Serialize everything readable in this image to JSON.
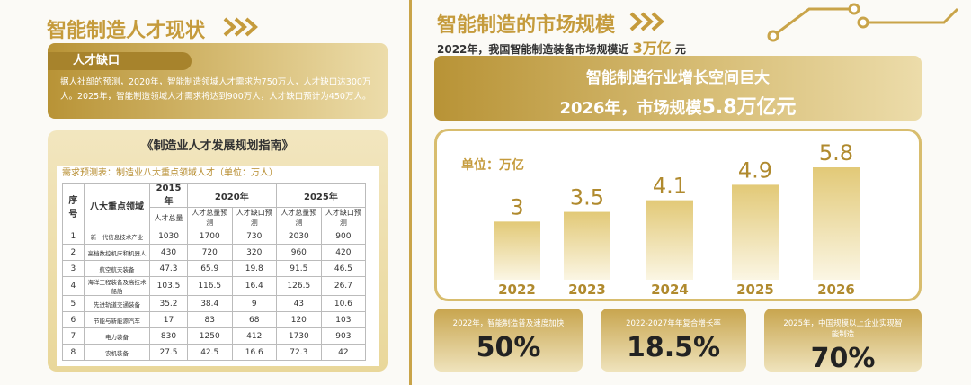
{
  "left": {
    "title": "智能制造人才现状",
    "section": "人才缺口",
    "paragraph": "据人社部的预测，2020年，智能制造领域人才需求为750万人，人才缺口达300万人。2025年，智能制造领域人才需求将达到900万人，人才缺口预计为450万人。",
    "table": {
      "title": "《制造业人才发展规划指南》",
      "subtitle": "需求预测表：制造业八大重点领域人才（单位：万人）",
      "header": [
        "序号",
        "八大重点领域",
        "2015年",
        "2020年",
        "2025年"
      ],
      "subheader": [
        "人才总量",
        "人才总量预测",
        "人才缺口预测",
        "人才总量预测",
        "人才缺口预测"
      ],
      "rows": [
        [
          1,
          "新一代信息技术产业",
          1030,
          1700,
          730,
          2030,
          900
        ],
        [
          2,
          "高档数控机床和机器人",
          430,
          720,
          320,
          960,
          420
        ],
        [
          3,
          "航空航天装备",
          47.3,
          65.9,
          19.8,
          91.5,
          46.5
        ],
        [
          4,
          "海洋工程装备及高技术船舶",
          103.5,
          116.5,
          16.4,
          126.5,
          26.7
        ],
        [
          5,
          "先进轨道交通装备",
          35.2,
          38.4,
          9,
          43,
          10.6
        ],
        [
          6,
          "节能与新能源汽车",
          17,
          83,
          68,
          120,
          103
        ],
        [
          7,
          "电力装备",
          830,
          1250,
          412,
          1730,
          903
        ],
        [
          8,
          "农机装备",
          27.5,
          42.5,
          16.6,
          72.3,
          42
        ]
      ]
    }
  },
  "right": {
    "title": "智能制造的市场规模",
    "subtitle": "2022年，我国智能制造装备市场规模近",
    "subtitle_highlight": "3万亿",
    "subtitle_unit": "元",
    "banner_line1": "智能制造行业增长空间巨大",
    "banner_line2": "2026年，市场规模",
    "banner_highlight": "5.8万亿元",
    "stats": [
      {
        "label": "2022年，智能制造普及速度加快",
        "value": "50%"
      },
      {
        "label": "2022-2027年年复合增长率",
        "value": "18.5%"
      },
      {
        "label": "2025年，中国规模以上企业实现智能制造",
        "value": "70%"
      }
    ]
  },
  "chart_data": {
    "type": "bar",
    "subtitle": "单位：万亿",
    "categories": [
      "2022",
      "2023",
      "2024",
      "2025",
      "2026"
    ],
    "values": [
      3,
      3.5,
      4.1,
      4.9,
      5.8
    ],
    "color": "#e3cc7e"
  }
}
